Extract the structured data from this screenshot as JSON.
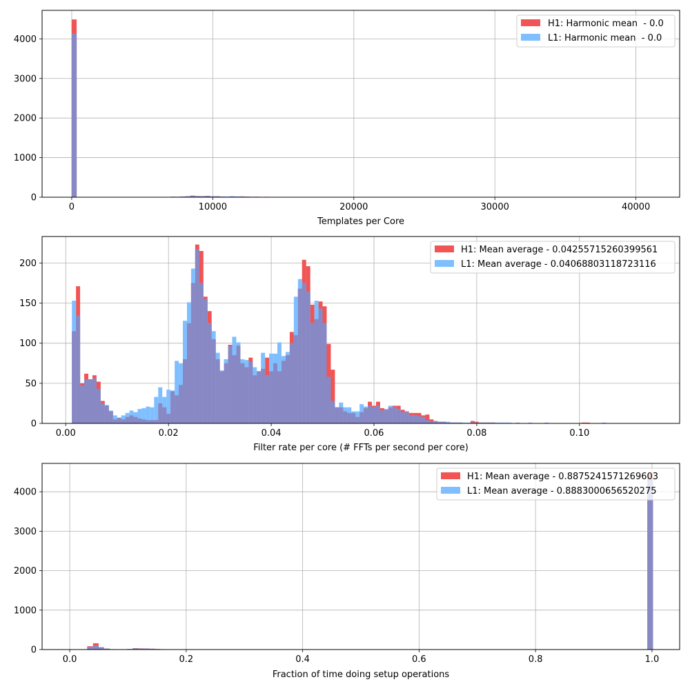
{
  "colors": {
    "h1": "#f05454",
    "l1": "#80bfff",
    "overlap": "#8888c4",
    "grid": "#b0b0b0"
  },
  "chart_data": [
    {
      "type": "bar",
      "xlabel": "Templates per Core",
      "ylabel": "",
      "xlim": [
        -2100,
        43100
      ],
      "ylim": [
        0,
        4720
      ],
      "xticks": [
        0,
        10000,
        20000,
        30000,
        40000
      ],
      "xtick_labels": [
        "0",
        "10000",
        "20000",
        "30000",
        "40000"
      ],
      "yticks": [
        0,
        1000,
        2000,
        3000,
        4000
      ],
      "ytick_labels": [
        "0",
        "1000",
        "2000",
        "3000",
        "4000"
      ],
      "grid": true,
      "legend_position": "top-right",
      "bin_width": 350,
      "series": [
        {
          "name": "H1: Harmonic mean  - 0.0",
          "bins": [
            [
              0,
              4490
            ],
            [
              6300,
              5
            ],
            [
              6650,
              8
            ],
            [
              7000,
              12
            ],
            [
              7350,
              10
            ],
            [
              7700,
              18
            ],
            [
              8050,
              25
            ],
            [
              8400,
              40
            ],
            [
              8750,
              30
            ],
            [
              9100,
              28
            ],
            [
              9450,
              35
            ],
            [
              9800,
              20
            ],
            [
              10150,
              25
            ],
            [
              10500,
              18
            ],
            [
              10850,
              12
            ],
            [
              11200,
              18
            ],
            [
              11550,
              15
            ],
            [
              11900,
              20
            ],
            [
              12250,
              14
            ],
            [
              12600,
              10
            ],
            [
              12950,
              12
            ],
            [
              13300,
              8
            ],
            [
              13650,
              10
            ],
            [
              14000,
              7
            ],
            [
              14350,
              8
            ],
            [
              14700,
              6
            ],
            [
              15050,
              5
            ]
          ]
        },
        {
          "name": "L1: Harmonic mean  - 0.0",
          "bins": [
            [
              0,
              4130
            ],
            [
              6300,
              5
            ],
            [
              6650,
              8
            ],
            [
              7000,
              10
            ],
            [
              7350,
              12
            ],
            [
              7700,
              15
            ],
            [
              8050,
              22
            ],
            [
              8400,
              35
            ],
            [
              8750,
              25
            ],
            [
              9100,
              22
            ],
            [
              9450,
              30
            ],
            [
              9800,
              25
            ],
            [
              10150,
              20
            ],
            [
              10500,
              15
            ],
            [
              10850,
              18
            ],
            [
              11200,
              25
            ],
            [
              11550,
              20
            ],
            [
              11900,
              15
            ],
            [
              12250,
              12
            ],
            [
              12600,
              10
            ],
            [
              12950,
              8
            ],
            [
              13300,
              6
            ],
            [
              13650,
              8
            ],
            [
              14000,
              5
            ],
            [
              14350,
              5
            ]
          ]
        }
      ]
    },
    {
      "type": "bar",
      "xlabel": "Filter rate per core (# FFTs per second per core)",
      "ylabel": "",
      "xlim": [
        -0.0046,
        0.1195
      ],
      "ylim": [
        0,
        233
      ],
      "xticks": [
        0.0,
        0.02,
        0.04,
        0.06,
        0.08,
        0.1
      ],
      "xtick_labels": [
        "0.00",
        "0.02",
        "0.04",
        "0.06",
        "0.08",
        "0.10"
      ],
      "yticks": [
        0,
        50,
        100,
        150,
        200
      ],
      "ytick_labels": [
        "0",
        "50",
        "100",
        "150",
        "200"
      ],
      "grid": true,
      "legend_position": "top-right",
      "bin_width": 0.0008,
      "series": [
        {
          "name": "H1: Mean average - 0.04255715260399561",
          "start": 0.0012,
          "values": [
            115,
            171,
            50,
            62,
            55,
            60,
            52,
            28,
            22,
            15,
            5,
            7,
            5,
            8,
            10,
            8,
            6,
            5,
            4,
            4,
            4,
            25,
            20,
            12,
            40,
            35,
            48,
            80,
            125,
            175,
            223,
            215,
            158,
            140,
            105,
            80,
            65,
            75,
            98,
            85,
            97,
            75,
            70,
            82,
            60,
            65,
            68,
            82,
            65,
            75,
            65,
            78,
            85,
            114,
            110,
            168,
            204,
            196,
            148,
            130,
            152,
            146,
            99,
            67,
            20,
            20,
            15,
            13,
            13,
            8,
            14,
            19,
            27,
            22,
            27,
            19,
            17,
            20,
            22,
            22,
            17,
            15,
            13,
            13,
            13,
            10,
            11,
            5,
            3,
            2,
            2,
            1,
            1,
            1,
            1,
            0,
            0,
            3,
            2,
            1,
            1,
            1,
            1,
            0,
            0,
            0,
            0,
            0,
            0,
            0,
            0,
            0,
            0,
            0,
            0,
            0,
            0,
            0,
            0,
            0,
            0,
            0,
            0,
            0,
            1,
            1,
            0,
            0,
            0,
            0
          ]
        },
        {
          "name": "L1: Mean average - 0.04068803118723116",
          "start": 0.0012,
          "values": [
            153,
            134,
            47,
            55,
            55,
            56,
            43,
            25,
            23,
            16,
            10,
            7,
            10,
            13,
            16,
            14,
            18,
            19,
            21,
            20,
            33,
            45,
            33,
            42,
            41,
            78,
            75,
            128,
            151,
            193,
            217,
            175,
            155,
            125,
            115,
            88,
            66,
            80,
            96,
            108,
            101,
            80,
            79,
            77,
            70,
            65,
            88,
            60,
            87,
            87,
            101,
            84,
            89,
            100,
            158,
            180,
            175,
            164,
            125,
            153,
            143,
            125,
            58,
            28,
            20,
            26,
            20,
            20,
            15,
            15,
            24,
            21,
            22,
            20,
            22,
            16,
            18,
            22,
            20,
            18,
            14,
            14,
            10,
            10,
            9,
            8,
            4,
            2,
            3,
            2,
            2,
            2,
            1,
            1,
            1,
            1,
            1,
            1,
            1,
            1,
            1,
            1,
            1,
            1,
            1,
            1,
            1,
            0,
            1,
            0,
            0,
            1,
            0,
            0,
            0,
            1,
            0,
            0,
            0,
            0,
            0,
            0,
            0,
            0,
            0,
            0,
            0,
            0,
            0,
            1
          ]
        }
      ]
    },
    {
      "type": "bar",
      "xlabel": "Fraction of time doing setup operations",
      "ylabel": "",
      "xlim": [
        -0.0475,
        1.0475
      ],
      "ylim": [
        0,
        4720
      ],
      "xticks": [
        0.0,
        0.2,
        0.4,
        0.6,
        0.8,
        1.0
      ],
      "xtick_labels": [
        "0.0",
        "0.2",
        "0.4",
        "0.6",
        "0.8",
        "1.0"
      ],
      "yticks": [
        0,
        1000,
        2000,
        3000,
        4000
      ],
      "ytick_labels": [
        "0",
        "1000",
        "2000",
        "3000",
        "4000"
      ],
      "grid": true,
      "legend_position": "top-right",
      "bin_width": 0.0097,
      "series": [
        {
          "name": "H1: Mean average - 0.8875241571269603",
          "bins": [
            [
              0.03,
              85
            ],
            [
              0.04,
              160
            ],
            [
              0.049,
              60
            ],
            [
              0.059,
              25
            ],
            [
              0.069,
              10
            ],
            [
              0.079,
              8
            ],
            [
              0.088,
              8
            ],
            [
              0.098,
              12
            ],
            [
              0.108,
              35
            ],
            [
              0.117,
              30
            ],
            [
              0.127,
              28
            ],
            [
              0.137,
              22
            ],
            [
              0.146,
              15
            ],
            [
              0.156,
              10
            ],
            [
              0.166,
              8
            ],
            [
              0.176,
              8
            ],
            [
              0.185,
              6
            ],
            [
              0.195,
              5
            ],
            [
              0.205,
              4
            ],
            [
              0.224,
              6
            ],
            [
              0.283,
              8
            ],
            [
              0.992,
              4460
            ]
          ]
        },
        {
          "name": "L1: Mean average - 0.8883000656520275",
          "bins": [
            [
              0.03,
              70
            ],
            [
              0.04,
              100
            ],
            [
              0.049,
              55
            ],
            [
              0.059,
              22
            ],
            [
              0.069,
              8
            ],
            [
              0.079,
              7
            ],
            [
              0.088,
              6
            ],
            [
              0.098,
              12
            ],
            [
              0.108,
              28
            ],
            [
              0.117,
              26
            ],
            [
              0.127,
              24
            ],
            [
              0.137,
              18
            ],
            [
              0.146,
              12
            ],
            [
              0.156,
              8
            ],
            [
              0.166,
              7
            ],
            [
              0.176,
              6
            ],
            [
              0.185,
              5
            ],
            [
              0.195,
              4
            ],
            [
              0.205,
              4
            ],
            [
              0.214,
              3
            ],
            [
              0.992,
              4320
            ]
          ]
        }
      ]
    }
  ]
}
